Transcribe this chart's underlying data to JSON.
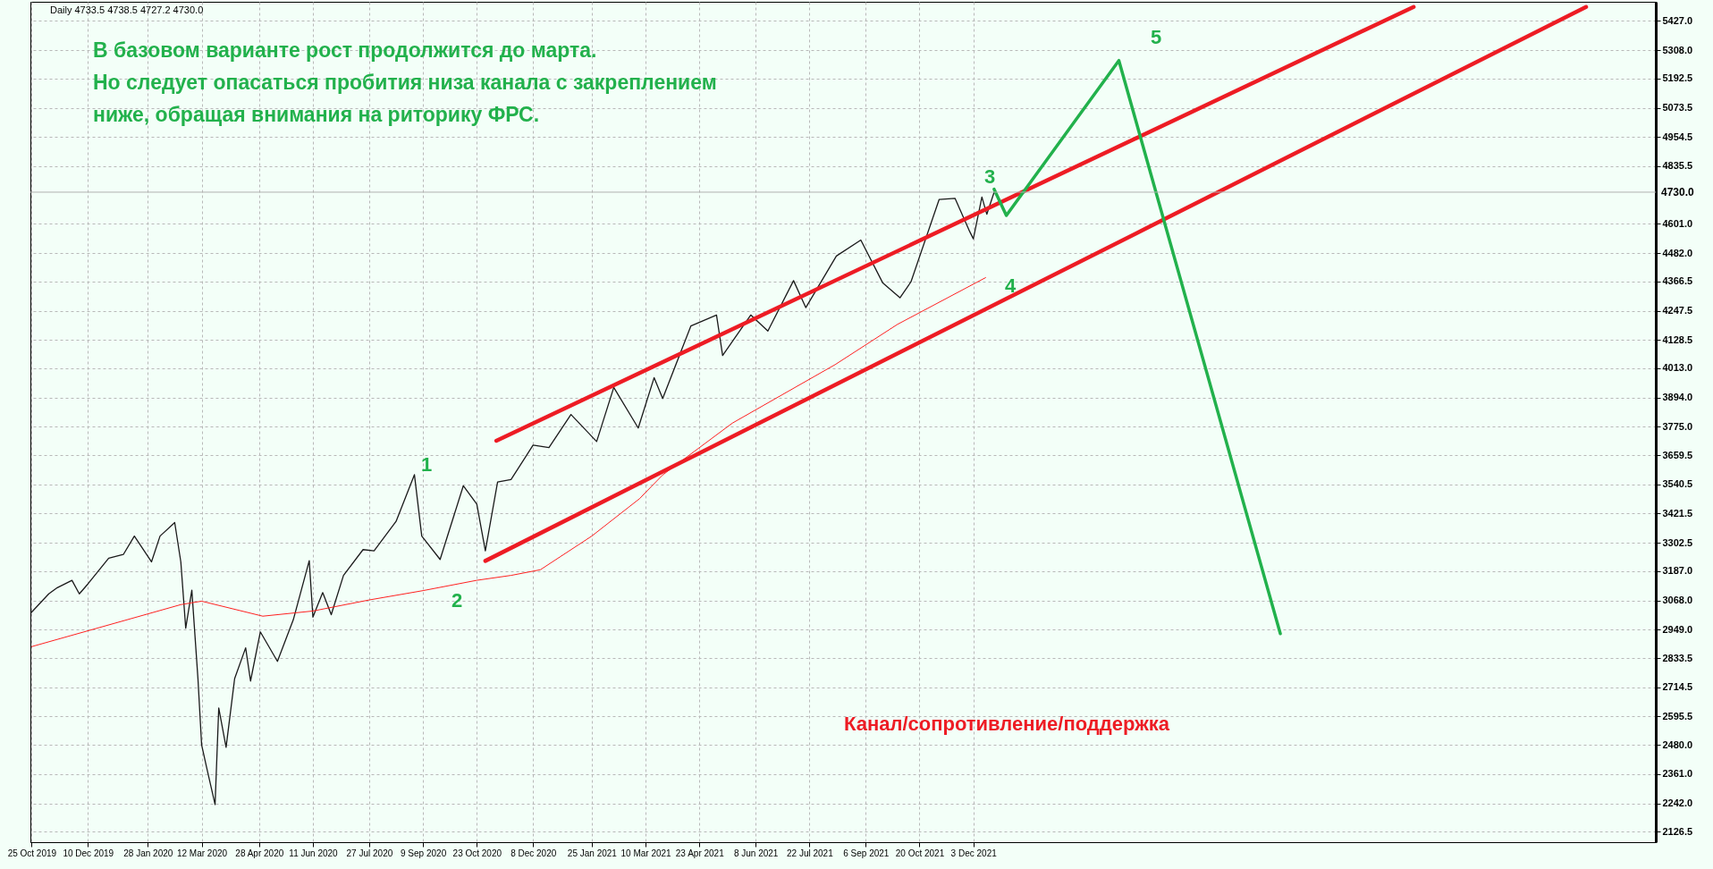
{
  "chart_data": {
    "type": "line",
    "title": "Daily  4733.5 4738.5 4727.2 4730.0",
    "subtitle": "В базовом варианте рост продолжится до марта.\nНо следует опасаться пробития низа канала с закреплением\nниже, обращая внимания на риторику ФРС.",
    "series": [
      {
        "color": "#1a1a1a",
        "x": [
          "2019-10-25",
          "2019-11-08",
          "2019-11-15",
          "2019-11-27",
          "2019-12-03",
          "2019-12-10",
          "2019-12-27",
          "2020-01-08",
          "2020-01-17",
          "2020-01-31",
          "2020-02-07",
          "2020-02-19",
          "2020-02-24",
          "2020-02-28",
          "2020-03-04",
          "2020-03-09",
          "2020-03-12",
          "2020-03-16",
          "2020-03-23",
          "2020-03-26",
          "2020-04-01",
          "2020-04-08",
          "2020-04-17",
          "2020-04-21",
          "2020-04-29",
          "2020-05-13",
          "2020-05-26",
          "2020-06-08",
          "2020-06-11",
          "2020-06-19",
          "2020-06-26",
          "2020-07-06",
          "2020-07-22",
          "2020-07-31",
          "2020-08-18",
          "2020-09-02",
          "2020-09-08",
          "2020-09-23",
          "2020-10-12",
          "2020-10-23",
          "2020-10-30",
          "2020-11-09",
          "2020-11-20",
          "2020-12-08",
          "2020-12-21",
          "2021-01-08",
          "2021-01-29",
          "2021-02-12",
          "2021-03-04",
          "2021-03-17",
          "2021-03-24",
          "2021-04-16",
          "2021-05-07",
          "2021-05-12",
          "2021-06-04",
          "2021-06-18",
          "2021-07-09",
          "2021-07-19",
          "2021-08-13",
          "2021-09-02",
          "2021-09-20",
          "2021-10-04",
          "2021-10-13",
          "2021-11-05",
          "2021-11-18",
          "2021-11-30",
          "2021-12-03",
          "2021-12-10",
          "2021-12-14",
          "2021-12-20"
        ],
        "values": [
          3020,
          3095,
          3120,
          3150,
          3095,
          3135,
          3240,
          3255,
          3330,
          3225,
          3330,
          3385,
          3225,
          2955,
          3110,
          2750,
          2480,
          2390,
          2237,
          2630,
          2470,
          2750,
          2875,
          2740,
          2940,
          2820,
          2990,
          3230,
          3000,
          3100,
          3010,
          3170,
          3275,
          3270,
          3390,
          3580,
          3330,
          3235,
          3535,
          3460,
          3270,
          3550,
          3560,
          3700,
          3690,
          3825,
          3715,
          3935,
          3770,
          3975,
          3890,
          4185,
          4230,
          4065,
          4230,
          4165,
          4370,
          4260,
          4470,
          4535,
          4360,
          4300,
          4365,
          4700,
          4705,
          4570,
          4540,
          4710,
          4640,
          4730
        ]
      },
      {
        "color": "#ff2020",
        "x": [
          "2019-10-25",
          "2020-02-24",
          "2020-03-12",
          "2020-05-01",
          "2020-06-11",
          "2020-07-27",
          "2020-09-09",
          "2020-10-23",
          "2020-11-20",
          "2020-12-14",
          "2021-01-25",
          "2021-03-05",
          "2021-03-24",
          "2021-05-20",
          "2021-08-12",
          "2021-10-02",
          "2021-12-13"
        ],
        "values": [
          2880,
          3051,
          3065,
          3004,
          3025,
          3070,
          3108,
          3150,
          3170,
          3193,
          3330,
          3482,
          3579,
          3790,
          4028,
          4192,
          4382
        ]
      },
      {
        "color": "#ed1c24",
        "x": [
          "2020-11-08",
          "2022-11-28"
        ],
        "values": [
          3718,
          5484
        ]
      },
      {
        "color": "#ed1c24",
        "x": [
          "2020-10-30",
          "2023-04-18"
        ],
        "values": [
          3229,
          5484
        ]
      },
      {
        "color": "#22b14c",
        "x": [
          "2021-12-20",
          "2021-12-30",
          "2022-04-01",
          "2022-08-11"
        ],
        "values": [
          4742,
          4635,
          5266,
          2933
        ]
      }
    ],
    "annotations": [
      "Канал/сопротивление/поддержка",
      "1",
      "2",
      "3",
      "4",
      "5"
    ],
    "ref_lines": [
      {
        "axis": "y",
        "value": 4730,
        "label": "4730.0",
        "color": "#b0b0b0"
      }
    ],
    "xlim": [
      "2019-10-24",
      "2023-06-14"
    ],
    "xticks": [
      {
        "value": "2019-10-25",
        "label": "25 Oct 2019"
      },
      {
        "value": "2019-12-10",
        "label": "10 Dec 2019"
      },
      {
        "value": "2020-01-28",
        "label": "28 Jan 2020"
      },
      {
        "value": "2020-03-12",
        "label": "12 Mar 2020"
      },
      {
        "value": "2020-04-28",
        "label": "28 Apr 2020"
      },
      {
        "value": "2020-06-11",
        "label": "11 Jun 2020"
      },
      {
        "value": "2020-07-27",
        "label": "27 Jul 2020"
      },
      {
        "value": "2020-09-09",
        "label": "9 Sep 2020"
      },
      {
        "value": "2020-10-23",
        "label": "23 Oct 2020"
      },
      {
        "value": "2020-12-08",
        "label": "8 Dec 2020"
      },
      {
        "value": "2021-01-25",
        "label": "25 Jan 2021"
      },
      {
        "value": "2021-03-10",
        "label": "10 Mar 2021"
      },
      {
        "value": "2021-04-23",
        "label": "23 Apr 2021"
      },
      {
        "value": "2021-06-08",
        "label": "8 Jun 2021"
      },
      {
        "value": "2021-07-22",
        "label": "22 Jul 2021"
      },
      {
        "value": "2021-09-06",
        "label": "6 Sep 2021"
      },
      {
        "value": "2021-10-20",
        "label": "20 Oct 2021"
      },
      {
        "value": "2021-12-03",
        "label": "3 Dec 2021"
      }
    ],
    "ylim": [
      2084,
      5505
    ],
    "yticks": [
      {
        "value": 2126.5,
        "label": "2126.5"
      },
      {
        "value": 2242,
        "label": "2242.0"
      },
      {
        "value": 2361,
        "label": "2361.0"
      },
      {
        "value": 2480,
        "label": "2480.0"
      },
      {
        "value": 2595.5,
        "label": "2595.5"
      },
      {
        "value": 2714.5,
        "label": "2714.5"
      },
      {
        "value": 2833.5,
        "label": "2833.5"
      },
      {
        "value": 2949,
        "label": "2949.0"
      },
      {
        "value": 3068,
        "label": "3068.0"
      },
      {
        "value": 3187,
        "label": "3187.0"
      },
      {
        "value": 3302.5,
        "label": "3302.5"
      },
      {
        "value": 3421.5,
        "label": "3421.5"
      },
      {
        "value": 3540.5,
        "label": "3540.5"
      },
      {
        "value": 3659.5,
        "label": "3659.5"
      },
      {
        "value": 3775,
        "label": "3775.0"
      },
      {
        "value": 3894,
        "label": "3894.0"
      },
      {
        "value": 4013,
        "label": "4013.0"
      },
      {
        "value": 4128.5,
        "label": "4128.5"
      },
      {
        "value": 4247.5,
        "label": "4247.5"
      },
      {
        "value": 4366.5,
        "label": "4366.5"
      },
      {
        "value": 4482,
        "label": "4482.0"
      },
      {
        "value": 4601,
        "label": "4601.0"
      },
      {
        "value": 4835.5,
        "label": "4835.5"
      },
      {
        "value": 4954.5,
        "label": "4954.5"
      },
      {
        "value": 5073.5,
        "label": "5073.5"
      },
      {
        "value": 5192.5,
        "label": "5192.5"
      },
      {
        "value": 5308,
        "label": "5308.0"
      },
      {
        "value": 5427,
        "label": "5427.0"
      }
    ],
    "grid": true,
    "marker": "none",
    "line_style": "solid"
  }
}
